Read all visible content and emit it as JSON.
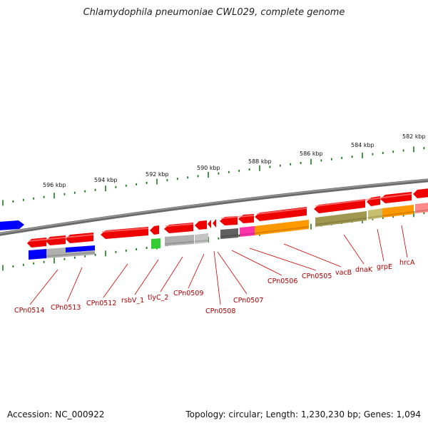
{
  "title": "Chlamydophila pneumoniae CWL029, complete genome",
  "footer": {
    "accession": "Accession: NC_000922",
    "summary": "Topology: circular; Length: 1,230,230 bp; Genes: 1,094"
  },
  "ruler": {
    "labels": [
      "596 kbp",
      "594 kbp",
      "592 kbp",
      "590 kbp",
      "588 kbp",
      "586 kbp",
      "584 kbp",
      "582 kbp"
    ]
  },
  "genes": [
    {
      "label": "CPn0514",
      "color": "#ff0000"
    },
    {
      "label": "CPn0513",
      "color": "#ff0000"
    },
    {
      "label": "CPn0512",
      "color": "#ff0000"
    },
    {
      "label": "rsbV_1",
      "color": "#ff0000"
    },
    {
      "label": "tlyC_2",
      "color": "#ff0000"
    },
    {
      "label": "CPn0509",
      "color": "#ff0000"
    },
    {
      "label": "CPn0508",
      "color": "#ff0000"
    },
    {
      "label": "CPn0507",
      "color": "#ff0000"
    },
    {
      "label": "CPn0506",
      "color": "#ff0000"
    },
    {
      "label": "CPn0505",
      "color": "#ff0000"
    },
    {
      "label": "vacB",
      "color": "#ff0000"
    },
    {
      "label": "dnaK",
      "color": "#ff0000"
    },
    {
      "label": "grpE",
      "color": "#ff0000"
    },
    {
      "label": "hrcA",
      "color": "#ff0000"
    }
  ],
  "cog_colors": {
    "blue": "#0000ff",
    "grey": "#b0b0b0",
    "green": "#33cc33",
    "dark_grey": "#606060",
    "magenta": "#ff33aa",
    "orange": "#ff9900",
    "olive": "#a09850",
    "khaki": "#c8c070",
    "salmon": "#ff8888"
  }
}
